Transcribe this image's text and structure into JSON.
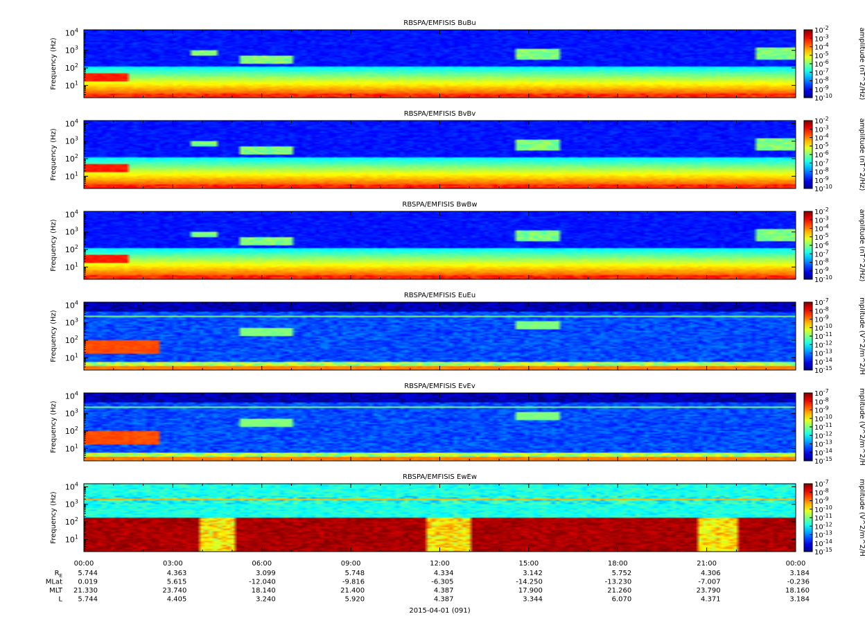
{
  "chart_data": [
    {
      "type": "heatmap",
      "title": "RBSPA/EMFISIS  BuBu",
      "ylabel": "Frequency (Hz)",
      "ylim": [
        2,
        15000
      ],
      "yscale": "log",
      "yticks": [
        {
          "m": "10",
          "e": "4"
        },
        {
          "m": "10",
          "e": "3"
        },
        {
          "m": "10",
          "e": "2"
        },
        {
          "m": "10",
          "e": "1"
        }
      ],
      "colorbar": {
        "label": "amplitude (nT^2/Hz)",
        "ticks": [
          "-2",
          "-3",
          "-4",
          "-5",
          "-6",
          "-7",
          "-8",
          "-9",
          "-10"
        ],
        "tick_base": "10",
        "range": [
          1e-10,
          0.01
        ],
        "colormap": "jet"
      }
    },
    {
      "type": "heatmap",
      "title": "RBSPA/EMFISIS  BvBv",
      "ylabel": "Frequency (Hz)",
      "ylim": [
        2,
        15000
      ],
      "yscale": "log",
      "yticks": [
        {
          "m": "10",
          "e": "4"
        },
        {
          "m": "10",
          "e": "3"
        },
        {
          "m": "10",
          "e": "2"
        },
        {
          "m": "10",
          "e": "1"
        }
      ],
      "colorbar": {
        "label": "amplitude (nT^2/Hz)",
        "ticks": [
          "-2",
          "-3",
          "-4",
          "-5",
          "-6",
          "-7",
          "-8",
          "-9",
          "-10"
        ],
        "tick_base": "10",
        "range": [
          1e-10,
          0.01
        ],
        "colormap": "jet"
      }
    },
    {
      "type": "heatmap",
      "title": "RBSPA/EMFISIS  BwBw",
      "ylabel": "Frequency (Hz)",
      "ylim": [
        2,
        15000
      ],
      "yscale": "log",
      "yticks": [
        {
          "m": "10",
          "e": "4"
        },
        {
          "m": "10",
          "e": "3"
        },
        {
          "m": "10",
          "e": "2"
        },
        {
          "m": "10",
          "e": "1"
        }
      ],
      "colorbar": {
        "label": "amplitude (nT^2/Hz)",
        "ticks": [
          "-2",
          "-3",
          "-4",
          "-5",
          "-6",
          "-7",
          "-8",
          "-9",
          "-10"
        ],
        "tick_base": "10",
        "range": [
          1e-10,
          0.01
        ],
        "colormap": "jet"
      }
    },
    {
      "type": "heatmap",
      "title": "RBSPA/EMFISIS  EuEu",
      "ylabel": "Frequency (Hz)",
      "ylim": [
        2,
        15000
      ],
      "yscale": "log",
      "yticks": [
        {
          "m": "10",
          "e": "4"
        },
        {
          "m": "10",
          "e": "3"
        },
        {
          "m": "10",
          "e": "2"
        },
        {
          "m": "10",
          "e": "1"
        }
      ],
      "colorbar": {
        "label": "mplitude (V^2/m^2/H",
        "ticks": [
          "-7",
          "-8",
          "-9",
          "-10",
          "-11",
          "-12",
          "-13",
          "-14",
          "-15"
        ],
        "tick_base": "10",
        "range": [
          1e-15,
          1e-07
        ],
        "colormap": "jet"
      }
    },
    {
      "type": "heatmap",
      "title": "RBSPA/EMFISIS  EvEv",
      "ylabel": "Frequency (Hz)",
      "ylim": [
        2,
        15000
      ],
      "yscale": "log",
      "yticks": [
        {
          "m": "10",
          "e": "4"
        },
        {
          "m": "10",
          "e": "3"
        },
        {
          "m": "10",
          "e": "2"
        },
        {
          "m": "10",
          "e": "1"
        }
      ],
      "colorbar": {
        "label": "mplitude (V^2/m^2/H",
        "ticks": [
          "-7",
          "-8",
          "-9",
          "-10",
          "-11",
          "-12",
          "-13",
          "-14",
          "-15"
        ],
        "tick_base": "10",
        "range": [
          1e-15,
          1e-07
        ],
        "colormap": "jet"
      }
    },
    {
      "type": "heatmap",
      "title": "RBSPA/EMFISIS  EwEw",
      "ylabel": "Frequency (Hz)",
      "ylim": [
        2,
        15000
      ],
      "yscale": "log",
      "yticks": [
        {
          "m": "10",
          "e": "4"
        },
        {
          "m": "10",
          "e": "3"
        },
        {
          "m": "10",
          "e": "2"
        },
        {
          "m": "10",
          "e": "1"
        }
      ],
      "colorbar": {
        "label": "mplitude (V^2/m^2/H",
        "ticks": [
          "-7",
          "-8",
          "-9",
          "-10",
          "-11",
          "-12",
          "-13",
          "-14",
          "-15"
        ],
        "tick_base": "10",
        "range": [
          1e-15,
          1e-07
        ],
        "colormap": "jet"
      }
    }
  ],
  "x_axis": {
    "ticks": [
      "00:00",
      "03:00",
      "06:00",
      "09:00",
      "12:00",
      "15:00",
      "18:00",
      "21:00",
      "00:00"
    ],
    "date_label": "2015-04-01 (091)",
    "ephemeris": [
      {
        "label": "R",
        "sub": "E",
        "values": [
          "5.744",
          "4.363",
          "3.099",
          "5.748",
          "4.334",
          "3.142",
          "5.752",
          "4.306",
          "3.184"
        ]
      },
      {
        "label": "MLat",
        "sub": "",
        "values": [
          "0.019",
          "5.615",
          "-12.040",
          "-9.816",
          "-6.305",
          "-14.250",
          "-13.230",
          "-7.007",
          "-0.236"
        ]
      },
      {
        "label": "MLT",
        "sub": "",
        "values": [
          "21.330",
          "23.740",
          "18.140",
          "21.400",
          "4.387",
          "17.900",
          "21.260",
          "23.790",
          "18.160"
        ]
      },
      {
        "label": "L",
        "sub": "",
        "values": [
          "5.744",
          "4.405",
          "3.240",
          "5.920",
          "4.387",
          "3.344",
          "6.070",
          "4.371",
          "3.184"
        ]
      }
    ]
  },
  "colors": {
    "jet_low": "#00008f",
    "jet_high": "#ff0000",
    "axis": "#000000"
  }
}
